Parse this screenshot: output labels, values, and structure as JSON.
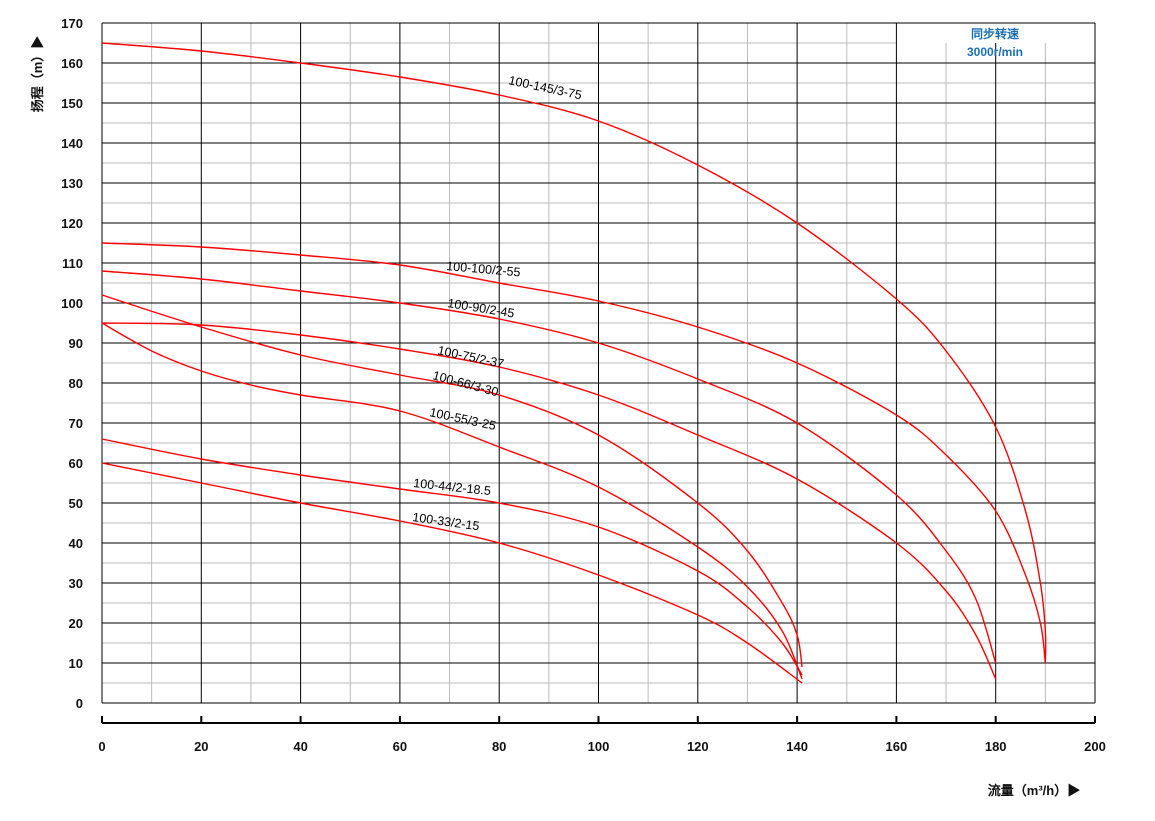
{
  "chart_data": {
    "type": "line",
    "title": "",
    "xlabel": "流量（m³/h）▶",
    "ylabel": "扬程（m）▶",
    "xlim": [
      0,
      200
    ],
    "ylim": [
      0,
      170
    ],
    "x_ticks": [
      0,
      20,
      40,
      60,
      80,
      100,
      120,
      140,
      160,
      180,
      200
    ],
    "y_ticks": [
      0,
      10,
      20,
      30,
      40,
      50,
      60,
      70,
      80,
      90,
      100,
      110,
      120,
      130,
      140,
      150,
      160,
      170
    ],
    "grid": true,
    "annotation": {
      "line1": "同步转速",
      "line2": "3000r/min"
    },
    "colors": {
      "curve": "#ff0000",
      "annotation": "#1a6fb5",
      "major_grid": "#000000",
      "minor_grid": "#bbbbbb"
    },
    "series": [
      {
        "name": "100-145/3-75",
        "points": [
          [
            0,
            165
          ],
          [
            20,
            163
          ],
          [
            40,
            160
          ],
          [
            60,
            156.5
          ],
          [
            80,
            152
          ],
          [
            100,
            145.5
          ],
          [
            120,
            134.5
          ],
          [
            140,
            120
          ],
          [
            160,
            101
          ],
          [
            170,
            88
          ],
          [
            180,
            69
          ],
          [
            186,
            48
          ],
          [
            189,
            30
          ],
          [
            190,
            18
          ],
          [
            190,
            10
          ]
        ]
      },
      {
        "name": "100-100/2-55",
        "points": [
          [
            0,
            115
          ],
          [
            20,
            114
          ],
          [
            40,
            112
          ],
          [
            60,
            109.5
          ],
          [
            80,
            105
          ],
          [
            100,
            100.5
          ],
          [
            120,
            94
          ],
          [
            140,
            85
          ],
          [
            160,
            72
          ],
          [
            170,
            62
          ],
          [
            180,
            48
          ],
          [
            186,
            32
          ],
          [
            189,
            20
          ],
          [
            190,
            10
          ]
        ]
      },
      {
        "name": "100-90/2-45",
        "points": [
          [
            0,
            108
          ],
          [
            20,
            106
          ],
          [
            40,
            103
          ],
          [
            60,
            100
          ],
          [
            80,
            96
          ],
          [
            100,
            90
          ],
          [
            120,
            81
          ],
          [
            140,
            70
          ],
          [
            160,
            52
          ],
          [
            170,
            38
          ],
          [
            176,
            26
          ],
          [
            180,
            10
          ]
        ]
      },
      {
        "name": "100-75/2-37",
        "points": [
          [
            0,
            95
          ],
          [
            20,
            94.5
          ],
          [
            40,
            92
          ],
          [
            60,
            88.5
          ],
          [
            80,
            84
          ],
          [
            100,
            77
          ],
          [
            120,
            67
          ],
          [
            140,
            56
          ],
          [
            160,
            40
          ],
          [
            170,
            28
          ],
          [
            176,
            17
          ],
          [
            180,
            6
          ]
        ]
      },
      {
        "name": "100-66/3-30",
        "points": [
          [
            0,
            102
          ],
          [
            20,
            94
          ],
          [
            40,
            87
          ],
          [
            60,
            82
          ],
          [
            80,
            77
          ],
          [
            100,
            67
          ],
          [
            120,
            50
          ],
          [
            130,
            38
          ],
          [
            137,
            25
          ],
          [
            140,
            17
          ],
          [
            141,
            9
          ]
        ]
      },
      {
        "name": "100-55/3-25",
        "points": [
          [
            0,
            95
          ],
          [
            10,
            88
          ],
          [
            20,
            83
          ],
          [
            30,
            79.5
          ],
          [
            40,
            77
          ],
          [
            60,
            73
          ],
          [
            80,
            64
          ],
          [
            100,
            54
          ],
          [
            120,
            39
          ],
          [
            130,
            29
          ],
          [
            137,
            18
          ],
          [
            141,
            6
          ]
        ]
      },
      {
        "name": "100-44/2-18.5",
        "points": [
          [
            0,
            66
          ],
          [
            20,
            61
          ],
          [
            40,
            57
          ],
          [
            60,
            53.5
          ],
          [
            80,
            50
          ],
          [
            100,
            44
          ],
          [
            120,
            33
          ],
          [
            130,
            24
          ],
          [
            137,
            15
          ],
          [
            141,
            7
          ]
        ]
      },
      {
        "name": "100-33/2-15",
        "points": [
          [
            0,
            60
          ],
          [
            20,
            55
          ],
          [
            40,
            50
          ],
          [
            60,
            45.5
          ],
          [
            80,
            40
          ],
          [
            100,
            32
          ],
          [
            120,
            22
          ],
          [
            130,
            15
          ],
          [
            141,
            5
          ]
        ]
      }
    ]
  }
}
